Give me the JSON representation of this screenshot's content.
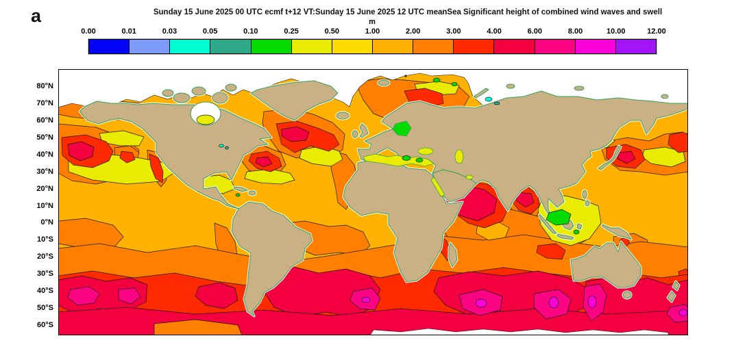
{
  "panel_label": "a",
  "title": "Sunday 15 June 2025 00 UTC ecmf t+12 VT:Sunday 15 June 2025 12 UTC meanSea  Significant height of combined wind waves and swell",
  "colorbar": {
    "unit": "m",
    "ticks": [
      "0.00",
      "0.01",
      "0.03",
      "0.05",
      "0.10",
      "0.25",
      "0.50",
      "1.00",
      "2.00",
      "3.00",
      "4.00",
      "6.00",
      "8.00",
      "10.00",
      "12.00"
    ],
    "colors": [
      "#0202f8",
      "#7d9bf8",
      "#00ffd5",
      "#2ea98a",
      "#06db00",
      "#e9ec00",
      "#ffdc00",
      "#ffb200",
      "#ff7f00",
      "#ff2a00",
      "#f40041",
      "#fc0384",
      "#fb00d8",
      "#a414f8"
    ]
  },
  "map": {
    "latitude_labels": [
      "80°N",
      "70°N",
      "60°N",
      "50°N",
      "40°N",
      "30°N",
      "20°N",
      "10°N",
      "0°N",
      "10°S",
      "20°S",
      "30°S",
      "40°S",
      "50°S",
      "60°S"
    ],
    "land_color": "#c9b185",
    "coastline_color": "#35a05a",
    "ice_color": "#ffffff"
  },
  "chart_data": {
    "type": "heatmap",
    "subtype": "filled-contour world map (equirectangular)",
    "title": "Significant height of combined wind waves and swell",
    "model_run": "Sunday 15 June 2025 00 UTC ecmf t+12",
    "valid_time": "Sunday 15 June 2025 12 UTC meanSea",
    "unit": "m",
    "levels": [
      0.0,
      0.01,
      0.03,
      0.05,
      0.1,
      0.25,
      0.5,
      1.0,
      2.0,
      3.0,
      4.0,
      6.0,
      8.0,
      10.0,
      12.0
    ],
    "palette": [
      "#0202f8",
      "#7d9bf8",
      "#00ffd5",
      "#2ea98a",
      "#06db00",
      "#e9ec00",
      "#ffdc00",
      "#ffb200",
      "#ff7f00",
      "#ff2a00",
      "#f40041",
      "#fc0384",
      "#fb00d8",
      "#a414f8"
    ],
    "legend_position": "top",
    "lat_axis_ticks": [
      "80°N",
      "70°N",
      "60°N",
      "50°N",
      "40°N",
      "30°N",
      "20°N",
      "10°N",
      "0°N",
      "10°S",
      "20°S",
      "30°S",
      "40°S",
      "50°S",
      "60°S"
    ],
    "lat_range_shown": [
      "90N",
      "65S"
    ],
    "grid": false,
    "notable_features": [
      {
        "region": "North Pacific storm near 165W 42N",
        "value_m": "4-6"
      },
      {
        "region": "North Atlantic storm south of Greenland",
        "value_m": "4-6"
      },
      {
        "region": "Western North Atlantic off US east coast",
        "value_m": "4-6"
      },
      {
        "region": "Barents Sea storm",
        "value_m": "3-4"
      },
      {
        "region": "Arabian Sea monsoon swell",
        "value_m": "4-6"
      },
      {
        "region": "Bay of Bengal",
        "value_m": "4-6"
      },
      {
        "region": "Northwest Pacific east of Japan",
        "value_m": "4-6"
      },
      {
        "region": "Southern Ocean belt 40-60S",
        "value_m": "4-8"
      },
      {
        "region": "South Indian Ocean cores",
        "value_m": "8-10"
      },
      {
        "region": "South of Australia",
        "value_m": "8-10"
      },
      {
        "region": "Southwest Atlantic east of Argentina",
        "value_m": "6-10"
      },
      {
        "region": "Tropical open oceans",
        "value_m": "1-3"
      },
      {
        "region": "Indonesian and sheltered seas",
        "value_m": "0.1-0.5"
      },
      {
        "region": "Arctic ice / Antarctic ice edge",
        "value_m": "no data (white)"
      }
    ]
  }
}
